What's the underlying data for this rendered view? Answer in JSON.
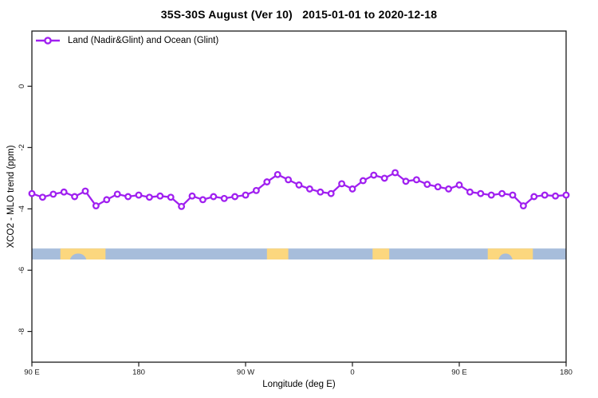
{
  "colors": {
    "series": "#A020F0",
    "marker_fill": "#ffffff",
    "ocean": "#A7BDDB",
    "land": "#FCD77E",
    "axis": "#1a1a1a",
    "background": "#ffffff"
  },
  "chart_data": {
    "type": "line",
    "title": "35S-30S August (Ver 10)   2015-01-01 to 2020-12-18",
    "xlabel": "Longitude (deg E)",
    "ylabel": "XCO2 - MLO trend (ppm)",
    "legend_position": "top-left",
    "grid": false,
    "xlim_deg": [
      90,
      540
    ],
    "ylim": [
      -9,
      1.8
    ],
    "x_ticks": [
      {
        "deg": 90,
        "label": "90 E"
      },
      {
        "deg": 180,
        "label": "180"
      },
      {
        "deg": 270,
        "label": "90 W"
      },
      {
        "deg": 360,
        "label": "0"
      },
      {
        "deg": 450,
        "label": "90 E"
      },
      {
        "deg": 540,
        "label": "180"
      }
    ],
    "y_ticks": [
      {
        "value": 0,
        "label": "0"
      },
      {
        "value": -2,
        "label": "-2"
      },
      {
        "value": -4,
        "label": "-4"
      },
      {
        "value": -6,
        "label": "-6"
      },
      {
        "value": -8,
        "label": "-8"
      }
    ],
    "series": [
      {
        "name": "Land (Nadir&Glint) and Ocean (Glint)",
        "marker": "open-circle",
        "x_deg": [
          90,
          99,
          108,
          117,
          126,
          135,
          144,
          153,
          162,
          171,
          180,
          189,
          198,
          207,
          216,
          225,
          234,
          243,
          252,
          261,
          270,
          279,
          288,
          297,
          306,
          315,
          324,
          333,
          342,
          351,
          360,
          369,
          378,
          387,
          396,
          405,
          414,
          423,
          432,
          441,
          450,
          459,
          468,
          477,
          486,
          495,
          504,
          513,
          522,
          531,
          540
        ],
        "values": [
          -3.5,
          -3.62,
          -3.52,
          -3.45,
          -3.6,
          -3.42,
          -3.9,
          -3.7,
          -3.52,
          -3.6,
          -3.55,
          -3.62,
          -3.58,
          -3.62,
          -3.92,
          -3.58,
          -3.7,
          -3.6,
          -3.66,
          -3.6,
          -3.55,
          -3.4,
          -3.12,
          -2.88,
          -3.05,
          -3.22,
          -3.35,
          -3.45,
          -3.5,
          -3.18,
          -3.35,
          -3.08,
          -2.9,
          -3.0,
          -2.82,
          -3.1,
          -3.05,
          -3.2,
          -3.28,
          -3.35,
          -3.22,
          -3.45,
          -3.5,
          -3.55,
          -3.5,
          -3.55,
          -3.9,
          -3.6,
          -3.55,
          -3.58,
          -3.55
        ]
      }
    ],
    "map_strip": {
      "description": "land/ocean band for latitude 35S-30S",
      "value_top": -5.29,
      "value_bottom": -5.65,
      "segments": [
        {
          "type": "ocean",
          "from": 90,
          "to": 114
        },
        {
          "type": "land",
          "from": 114,
          "to": 152,
          "notch": {
            "from": 122,
            "to": 136
          }
        },
        {
          "type": "ocean",
          "from": 152,
          "to": 288
        },
        {
          "type": "land",
          "from": 288,
          "to": 306
        },
        {
          "type": "ocean",
          "from": 306,
          "to": 377
        },
        {
          "type": "land",
          "from": 377,
          "to": 391
        },
        {
          "type": "ocean",
          "from": 391,
          "to": 474
        },
        {
          "type": "land",
          "from": 474,
          "to": 512,
          "notch": {
            "from": 483,
            "to": 495
          }
        },
        {
          "type": "ocean",
          "from": 512,
          "to": 540
        }
      ]
    }
  }
}
